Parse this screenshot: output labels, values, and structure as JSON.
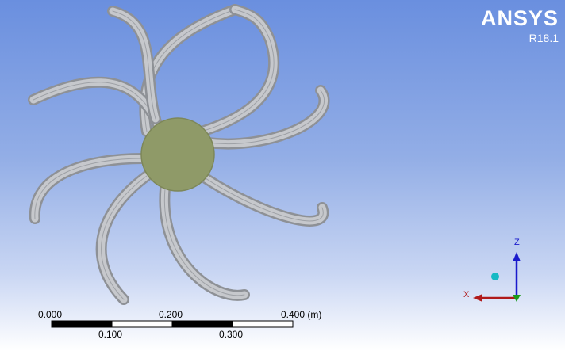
{
  "logo": {
    "name": "ANSYS",
    "version": "R18.1"
  },
  "scale_bar": {
    "top_labels": [
      "0.000",
      "0.200",
      "0.400 (m)"
    ],
    "bottom_labels": [
      "0.100",
      "0.300"
    ]
  },
  "triad": {
    "z_label": "Z",
    "x_label": "X"
  },
  "colors": {
    "background_top": "#6a8fdf",
    "background_bottom": "#ffffff",
    "blade_fill": "#c6c8cc",
    "blade_edge": "#8e9196",
    "hub_fill": "#8f9a68",
    "z_axis": "#1a1acc",
    "x_axis": "#b01a1a",
    "y_axis": "#1a9a1a",
    "isometric_ball": "#16b9c4"
  },
  "icons": {
    "isometric_ball": "sphere-icon"
  }
}
